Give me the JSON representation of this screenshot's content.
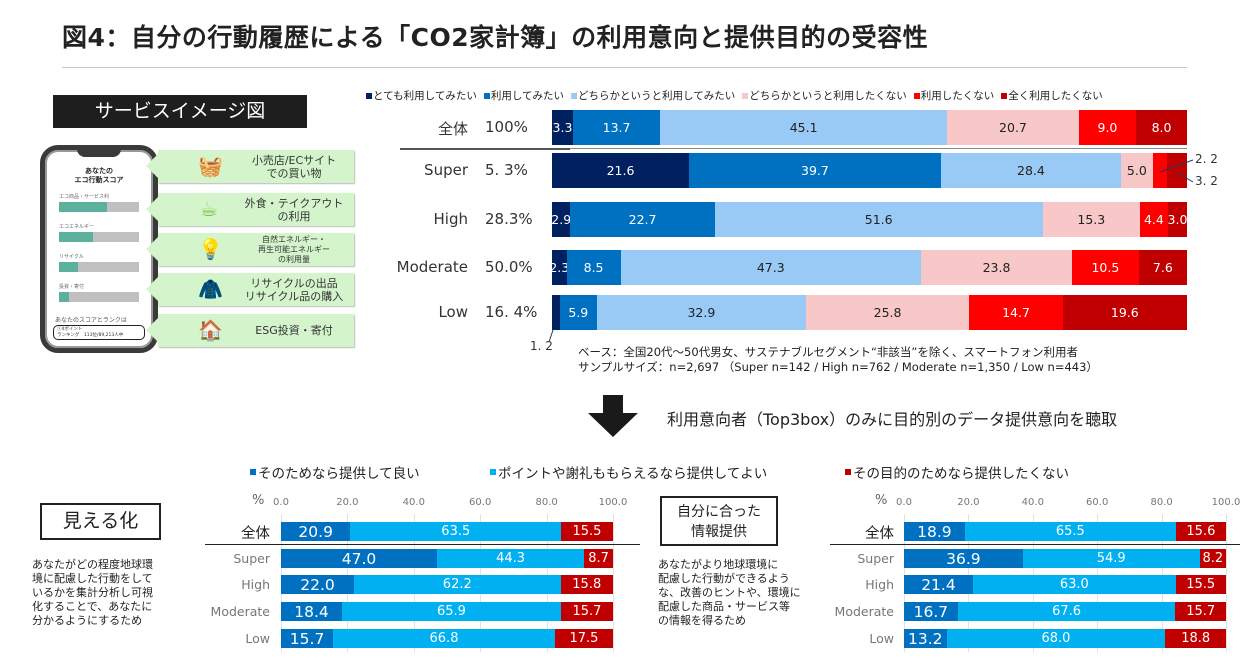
{
  "title": "図4：自分の行動履歴による「CO2家計簿」の利用意向と提供目的の受容性",
  "service_panel": {
    "header": "サービスイメージ図",
    "phone": {
      "title_line1": "あなたの",
      "title_line2": "エコ行動スコア",
      "scores": [
        {
          "label": "エコ商品・サービス利",
          "fill": 0.6
        },
        {
          "label": "エコエネルギー",
          "fill": 0.43
        },
        {
          "label": "リサイクル",
          "fill": 0.24
        },
        {
          "label": "投資・寄付",
          "fill": 0.12
        }
      ],
      "rank_label": "あなたのスコアとランクは",
      "rank_line1": "ⓢ4ポイント",
      "rank_line2": "ランキング　113位/89,213人中"
    },
    "items": [
      {
        "icon": "basket-icon",
        "glyph": "🧺",
        "text": "小売店/ECサイト\nでの買い物",
        "small": false
      },
      {
        "icon": "coffee-cup-icon",
        "glyph": "☕",
        "text": "外食・テイクアウト\nの利用",
        "small": false
      },
      {
        "icon": "lightbulb-icon",
        "glyph": "💡",
        "text": "自然エネルギー・\n再生可能エネルギー\nの利用量",
        "small": true
      },
      {
        "icon": "jacket-icon",
        "glyph": "🧥",
        "text": "リサイクルの出品\nリサイクル品の購入",
        "small": false
      },
      {
        "icon": "house-coins-icon",
        "glyph": "🏠",
        "text": "ESG投資・寄付",
        "small": false
      }
    ]
  },
  "chart_data": [
    {
      "type": "bar",
      "orientation": "horizontal-stacked-100",
      "title": "CO2家計簿 利用意向",
      "categories": [
        "全体",
        "Super",
        "High",
        "Moderate",
        "Low"
      ],
      "category_shares": [
        "100%",
        "5. 3%",
        "28.3%",
        "50.0%",
        "16. 4%"
      ],
      "series": [
        {
          "name": "とても利用してみたい",
          "color": "#002060",
          "text_color": "#ffffff",
          "values": [
            3.3,
            21.6,
            2.9,
            2.3,
            1.2
          ]
        },
        {
          "name": "利用してみたい",
          "color": "#0070c0",
          "text_color": "#ffffff",
          "values": [
            13.7,
            39.7,
            22.7,
            8.5,
            5.9
          ]
        },
        {
          "name": "どちらかというと利用してみたい",
          "color": "#99c9f5",
          "text_color": "#222222",
          "values": [
            45.1,
            28.4,
            51.6,
            47.3,
            32.9
          ]
        },
        {
          "name": "どちらかというと利用したくない",
          "color": "#f8c8c8",
          "text_color": "#222222",
          "values": [
            20.7,
            5.0,
            15.3,
            23.8,
            25.8
          ]
        },
        {
          "name": "利用したくない",
          "color": "#ff0000",
          "text_color": "#ffffff",
          "values": [
            9.0,
            2.2,
            4.4,
            10.5,
            14.7
          ]
        },
        {
          "name": "全く利用したくない",
          "color": "#c00000",
          "text_color": "#ffffff",
          "values": [
            8.0,
            3.2,
            3.0,
            7.6,
            19.6
          ]
        }
      ],
      "callouts": [
        {
          "category": "Super",
          "series": "利用したくない",
          "text": "2. 2"
        },
        {
          "category": "Super",
          "series": "全く利用したくない",
          "text": "3. 2"
        },
        {
          "category": "Low",
          "series": "とても利用してみたい",
          "text": "1. 2"
        }
      ],
      "notes": [
        "ベース：全国20代～50代男女、サステナブルセグメント“非該当”を除く、スマートフォン利用者",
        "サンプルサイズ：n=2,697 （Super n=142 / High n=762 / Moderate n=1,350 / Low n=443）"
      ],
      "legend": "top"
    },
    {
      "type": "bar",
      "orientation": "horizontal-stacked-100",
      "title": "見える化",
      "xlabel": "%",
      "xlim": [
        0,
        100
      ],
      "xticks": [
        "0.0",
        "20.0",
        "40.0",
        "60.0",
        "80.0",
        "100.0"
      ],
      "categories": [
        "全体",
        "Super",
        "High",
        "Moderate",
        "Low"
      ],
      "series": [
        {
          "name": "そのためなら提供して良い",
          "color": "#0070c0",
          "values": [
            20.9,
            47.0,
            22.0,
            18.4,
            15.7
          ]
        },
        {
          "name": "ポイントや謝礼ももらえるなら提供してよい",
          "color": "#00b0f0",
          "values": [
            63.5,
            44.3,
            62.2,
            65.9,
            66.8
          ]
        },
        {
          "name": "その目的のためなら提供したくない",
          "color": "#c00000",
          "values": [
            15.5,
            8.7,
            15.8,
            15.7,
            17.5
          ]
        }
      ],
      "description": "あなたがどの程度地球環\n境に配慮した行動をして\nいるかを集計分析し可視\n化することで、あなたに\n分かるようにするため",
      "grid": true
    },
    {
      "type": "bar",
      "orientation": "horizontal-stacked-100",
      "title": "自分に合った\n情報提供",
      "xlabel": "%",
      "xlim": [
        0,
        100
      ],
      "xticks": [
        "0.0",
        "20.0",
        "40.0",
        "60.0",
        "80.0",
        "100.0"
      ],
      "categories": [
        "全体",
        "Super",
        "High",
        "Moderate",
        "Low"
      ],
      "series": [
        {
          "name": "そのためなら提供して良い",
          "color": "#0070c0",
          "values": [
            18.9,
            36.9,
            21.4,
            16.7,
            13.2
          ]
        },
        {
          "name": "ポイントや謝礼ももらえるなら提供してよい",
          "color": "#00b0f0",
          "values": [
            65.5,
            54.9,
            63.0,
            67.6,
            68.0
          ]
        },
        {
          "name": "その目的のためなら提供したくない",
          "color": "#c00000",
          "values": [
            15.6,
            8.2,
            15.5,
            15.7,
            18.8
          ]
        }
      ],
      "description": " あなたがより地球環境に\n配慮した行動ができるよう\nな、改善のヒントや、環境に\n配慮した商品・サービス等\nの情報を得るため",
      "grid": true
    }
  ],
  "arrow_text": "利用意向者（Top3box）のみに目的別のデータ提供意向を聴取",
  "bottom_legend": [
    {
      "label": "そのためなら提供して良い",
      "color": "#0070c0"
    },
    {
      "label": "ポイントや謝礼ももらえるなら提供してよい",
      "color": "#00b0f0"
    },
    {
      "label": "その目的のためなら提供したくない",
      "color": "#c00000"
    }
  ]
}
